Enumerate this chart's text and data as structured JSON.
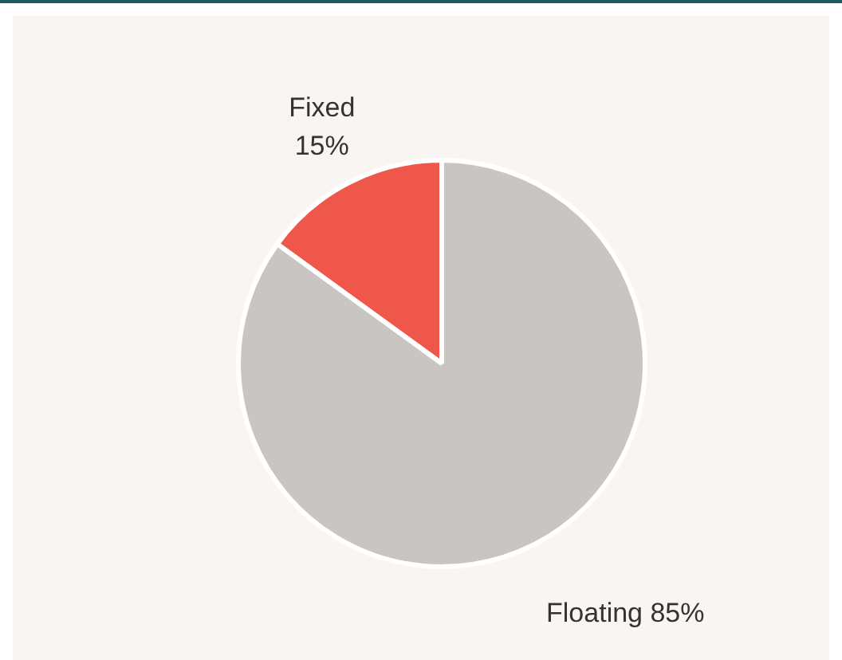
{
  "chart_data": {
    "type": "pie",
    "categories": [
      "Fixed",
      "Floating"
    ],
    "values": [
      15,
      85
    ],
    "colors": [
      "#f0574b",
      "#c9c5c3"
    ],
    "legend": false,
    "value_labels": [
      "15%",
      "85%"
    ]
  }
}
